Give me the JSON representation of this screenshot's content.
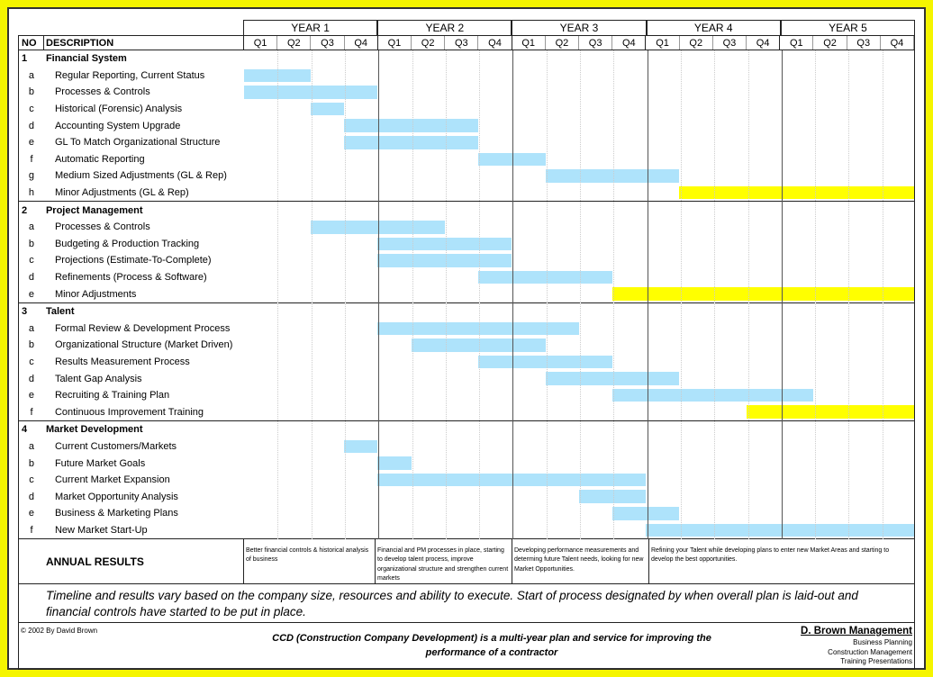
{
  "years": [
    "YEAR 1",
    "YEAR 2",
    "YEAR 3",
    "YEAR 4",
    "YEAR 5"
  ],
  "quarters": [
    "Q1",
    "Q2",
    "Q3",
    "Q4"
  ],
  "header": {
    "no": "NO",
    "desc": "DESCRIPTION"
  },
  "colors": {
    "bar": "#aee3fb",
    "highlight": "#ffff00",
    "frame": "#f5f500"
  },
  "sections": [
    {
      "no": "1",
      "title": "Financial System",
      "items": [
        {
          "id": "a",
          "label": "Regular Reporting, Current Status",
          "start": 0,
          "end": 2,
          "hl": false
        },
        {
          "id": "b",
          "label": "Processes & Controls",
          "start": 0,
          "end": 4,
          "hl": false
        },
        {
          "id": "c",
          "label": "Historical (Forensic) Analysis",
          "start": 2,
          "end": 3,
          "hl": false
        },
        {
          "id": "d",
          "label": "Accounting System Upgrade",
          "start": 3,
          "end": 7,
          "hl": false
        },
        {
          "id": "e",
          "label": "GL To Match Organizational Structure",
          "start": 3,
          "end": 7,
          "hl": false
        },
        {
          "id": "f",
          "label": "Automatic Reporting",
          "start": 7,
          "end": 9,
          "hl": false
        },
        {
          "id": "g",
          "label": "Medium Sized Adjustments (GL & Rep)",
          "start": 9,
          "end": 13,
          "hl": false
        },
        {
          "id": "h",
          "label": "Minor Adjustments (GL & Rep)",
          "start": 13,
          "end": 20,
          "hl": true
        }
      ]
    },
    {
      "no": "2",
      "title": "Project Management",
      "items": [
        {
          "id": "a",
          "label": "Processes & Controls",
          "start": 2,
          "end": 6,
          "hl": false
        },
        {
          "id": "b",
          "label": "Budgeting & Production Tracking",
          "start": 4,
          "end": 8,
          "hl": false
        },
        {
          "id": "c",
          "label": "Projections (Estimate-To-Complete)",
          "start": 4,
          "end": 8,
          "hl": false
        },
        {
          "id": "d",
          "label": "Refinements (Process & Software)",
          "start": 7,
          "end": 11,
          "hl": false
        },
        {
          "id": "e",
          "label": "Minor Adjustments",
          "start": 11,
          "end": 20,
          "hl": true
        }
      ]
    },
    {
      "no": "3",
      "title": "Talent",
      "items": [
        {
          "id": "a",
          "label": "Formal Review & Development Process",
          "start": 4,
          "end": 10,
          "hl": false
        },
        {
          "id": "b",
          "label": "Organizational Structure (Market Driven)",
          "start": 5,
          "end": 9,
          "hl": false
        },
        {
          "id": "c",
          "label": "Results Measurement Process",
          "start": 7,
          "end": 11,
          "hl": false
        },
        {
          "id": "d",
          "label": "Talent Gap Analysis",
          "start": 9,
          "end": 13,
          "hl": false
        },
        {
          "id": "e",
          "label": "Recruiting & Training Plan",
          "start": 11,
          "end": 17,
          "hl": false
        },
        {
          "id": "f",
          "label": "Continuous Improvement Training",
          "start": 15,
          "end": 20,
          "hl": true
        }
      ]
    },
    {
      "no": "4",
      "title": "Market Development",
      "items": [
        {
          "id": "a",
          "label": "Current Customers/Markets",
          "start": 3,
          "end": 4,
          "hl": false
        },
        {
          "id": "b",
          "label": "Future Market Goals",
          "start": 4,
          "end": 5,
          "hl": false
        },
        {
          "id": "c",
          "label": "Current Market Expansion",
          "start": 4,
          "end": 12,
          "hl": false
        },
        {
          "id": "d",
          "label": "Market Opportunity Analysis",
          "start": 10,
          "end": 12,
          "hl": false
        },
        {
          "id": "e",
          "label": "Business & Marketing Plans",
          "start": 11,
          "end": 13,
          "hl": false
        },
        {
          "id": "f",
          "label": "New Market Start-Up",
          "start": 12,
          "end": 20,
          "hl": false
        }
      ]
    }
  ],
  "results": {
    "label": "ANNUAL RESULTS",
    "cells": [
      "Better financial controls & historical analysis of business",
      "Financial and PM processes in place, starting to develop talent process, improve organizational structure and strengthen current markets",
      "Developing performance measurements and determing future Talent needs, looking for new Market Opportunities.",
      "Refining your Talent while developing plans to enter new Market Areas and starting to develop the best opportunities."
    ]
  },
  "note": "Timeline and results vary based on the company size, resources and ability to execute.  Start of process designated by when overall plan is laid-out and financial controls have started to be put in place.",
  "footer": {
    "copyright": "© 2002 By David Brown",
    "description": "CCD (Construction Company Development) is a multi-year plan and service for improving the performance of a contractor",
    "brand": "D. Brown Management",
    "services": [
      "Business Planning",
      "Construction Management",
      "Training Presentations"
    ]
  }
}
